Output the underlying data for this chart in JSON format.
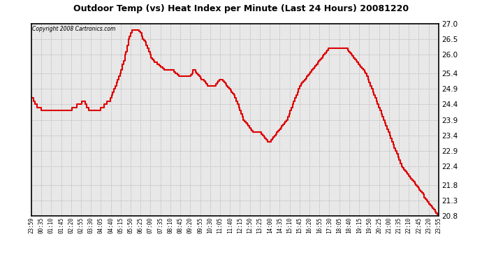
{
  "title": "Outdoor Temp (vs) Heat Index per Minute (Last 24 Hours) 20081220",
  "copyright_text": "Copyright 2008 Cartronics.com",
  "line_color": "#dd0000",
  "background_color": "#ffffff",
  "plot_background": "#e8e8e8",
  "grid_color": "#bbbbbb",
  "ylim": [
    20.8,
    27.0
  ],
  "yticks": [
    20.8,
    21.3,
    21.8,
    22.4,
    22.9,
    23.4,
    23.9,
    24.4,
    24.9,
    25.4,
    26.0,
    26.5,
    27.0
  ],
  "xtick_labels": [
    "23:59",
    "00:35",
    "01:10",
    "01:45",
    "02:20",
    "02:55",
    "03:30",
    "04:05",
    "04:40",
    "05:15",
    "05:50",
    "06:25",
    "07:00",
    "07:35",
    "08:10",
    "08:45",
    "09:20",
    "09:55",
    "10:30",
    "11:05",
    "11:40",
    "12:15",
    "12:50",
    "13:25",
    "14:00",
    "14:35",
    "15:10",
    "15:45",
    "16:20",
    "16:55",
    "17:30",
    "18:05",
    "18:40",
    "19:15",
    "19:50",
    "20:25",
    "21:00",
    "21:35",
    "22:10",
    "22:45",
    "23:20",
    "23:55"
  ],
  "y_values": [
    24.6,
    24.6,
    24.5,
    24.4,
    24.4,
    24.3,
    24.3,
    24.3,
    24.2,
    24.2,
    24.2,
    24.2,
    24.2,
    24.2,
    24.2,
    24.2,
    24.2,
    24.2,
    24.2,
    24.2,
    24.2,
    24.2,
    24.2,
    24.2,
    24.2,
    24.2,
    24.2,
    24.2,
    24.2,
    24.2,
    24.2,
    24.2,
    24.2,
    24.2,
    24.3,
    24.3,
    24.3,
    24.3,
    24.4,
    24.4,
    24.4,
    24.4,
    24.5,
    24.5,
    24.5,
    24.4,
    24.3,
    24.3,
    24.2,
    24.2,
    24.2,
    24.2,
    24.2,
    24.2,
    24.2,
    24.2,
    24.2,
    24.2,
    24.3,
    24.3,
    24.3,
    24.4,
    24.4,
    24.5,
    24.5,
    24.5,
    24.6,
    24.7,
    24.8,
    24.9,
    25.0,
    25.1,
    25.2,
    25.3,
    25.4,
    25.5,
    25.7,
    25.8,
    26.0,
    26.1,
    26.3,
    26.5,
    26.6,
    26.7,
    26.8,
    26.8,
    26.8,
    26.8,
    26.8,
    26.8,
    26.75,
    26.7,
    26.6,
    26.5,
    26.45,
    26.4,
    26.3,
    26.2,
    26.1,
    26.0,
    25.9,
    25.85,
    25.8,
    25.75,
    25.75,
    25.7,
    25.7,
    25.65,
    25.6,
    25.6,
    25.55,
    25.5,
    25.5,
    25.5,
    25.5,
    25.5,
    25.5,
    25.5,
    25.5,
    25.45,
    25.4,
    25.4,
    25.35,
    25.3,
    25.3,
    25.3,
    25.3,
    25.3,
    25.3,
    25.3,
    25.3,
    25.3,
    25.3,
    25.35,
    25.4,
    25.5,
    25.5,
    25.45,
    25.4,
    25.35,
    25.3,
    25.25,
    25.2,
    25.2,
    25.15,
    25.1,
    25.05,
    25.0,
    25.0,
    25.0,
    25.0,
    25.0,
    25.0,
    25.0,
    25.05,
    25.1,
    25.15,
    25.2,
    25.2,
    25.2,
    25.15,
    25.1,
    25.05,
    25.0,
    24.95,
    24.9,
    24.85,
    24.8,
    24.75,
    24.7,
    24.6,
    24.5,
    24.4,
    24.3,
    24.2,
    24.1,
    24.0,
    23.9,
    23.85,
    23.8,
    23.75,
    23.7,
    23.65,
    23.6,
    23.55,
    23.5,
    23.5,
    23.5,
    23.5,
    23.5,
    23.5,
    23.5,
    23.45,
    23.4,
    23.35,
    23.3,
    23.25,
    23.2,
    23.2,
    23.2,
    23.25,
    23.3,
    23.35,
    23.4,
    23.45,
    23.5,
    23.55,
    23.6,
    23.65,
    23.7,
    23.75,
    23.8,
    23.85,
    23.9,
    24.0,
    24.1,
    24.2,
    24.3,
    24.4,
    24.5,
    24.6,
    24.7,
    24.8,
    24.9,
    25.0,
    25.05,
    25.1,
    25.15,
    25.2,
    25.25,
    25.3,
    25.35,
    25.4,
    25.45,
    25.5,
    25.55,
    25.6,
    25.65,
    25.7,
    25.75,
    25.8,
    25.85,
    25.9,
    25.95,
    26.0,
    26.05,
    26.1,
    26.15,
    26.2,
    26.2,
    26.2,
    26.2,
    26.2,
    26.2,
    26.2,
    26.2,
    26.2,
    26.2,
    26.2,
    26.2,
    26.2,
    26.2,
    26.2,
    26.2,
    26.15,
    26.1,
    26.05,
    26.0,
    25.95,
    25.9,
    25.85,
    25.8,
    25.75,
    25.7,
    25.65,
    25.6,
    25.55,
    25.5,
    25.45,
    25.4,
    25.3,
    25.2,
    25.1,
    25.0,
    24.9,
    24.8,
    24.7,
    24.6,
    24.5,
    24.4,
    24.3,
    24.2,
    24.1,
    24.0,
    23.9,
    23.8,
    23.7,
    23.6,
    23.5,
    23.4,
    23.3,
    23.2,
    23.1,
    23.0,
    22.9,
    22.8,
    22.7,
    22.6,
    22.5,
    22.4,
    22.35,
    22.3,
    22.25,
    22.2,
    22.15,
    22.1,
    22.05,
    22.0,
    21.95,
    21.9,
    21.85,
    21.8,
    21.75,
    21.7,
    21.65,
    21.6,
    21.55,
    21.5,
    21.4,
    21.35,
    21.3,
    21.25,
    21.2,
    21.15,
    21.1,
    21.05,
    21.0,
    20.95,
    20.9,
    20.85,
    20.8
  ]
}
